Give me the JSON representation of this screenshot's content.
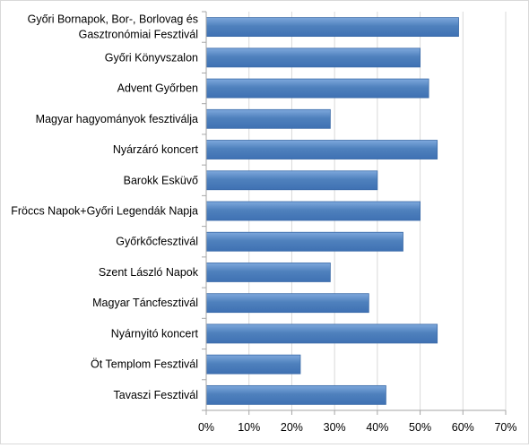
{
  "chart_data": {
    "type": "bar",
    "orientation": "horizontal",
    "categories": [
      "Győri Bornapok, Bor-, Borlovag és\nGasztronómiai Fesztivál",
      "Győri Könyvszalon",
      "Advent Győrben",
      "Magyar hagyományok fesztiválja",
      "Nyárzáró koncert",
      "Barokk Esküvő",
      "Fröccs Napok+Győri Legendák Napja",
      "Győrkőcfesztivál",
      "Szent László Napok",
      "Magyar Táncfesztivál",
      "Nyárnyitó koncert",
      "Öt Templom Fesztivál",
      "Tavaszi Fesztivál"
    ],
    "values": [
      59,
      50,
      52,
      29,
      54,
      40,
      50,
      46,
      29,
      38,
      54,
      22,
      42
    ],
    "unit": "%",
    "xlim": [
      0,
      70
    ],
    "xticks": [
      "0%",
      "10%",
      "20%",
      "30%",
      "40%",
      "50%",
      "60%",
      "70%"
    ],
    "grid": true,
    "legend": "none",
    "title": "",
    "xlabel": "",
    "ylabel": "",
    "colors": {
      "bar_fill": "#4f81bd",
      "bar_stroke": "#3a6aa8",
      "grid": "#d9d9d9",
      "axis": "#a6a6a6"
    }
  }
}
